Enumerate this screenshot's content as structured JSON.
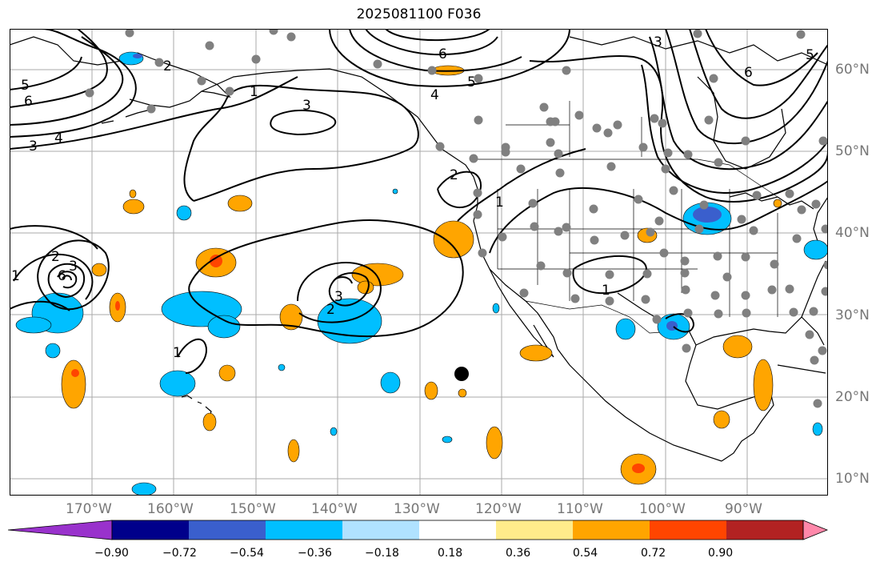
{
  "title": "2025081100 F036",
  "lat_labels": [
    "60°N",
    "50°N",
    "40°N",
    "30°N",
    "20°N",
    "10°N"
  ],
  "lon_labels": [
    "170°W",
    "160°W",
    "150°W",
    "140°W",
    "130°W",
    "120°W",
    "110°W",
    "100°W",
    "90°W"
  ],
  "colorbar": {
    "colors": [
      "#9932CC",
      "#00008B",
      "#3A5FCD",
      "#00BFFF",
      "#B0E2FF",
      "#FFFFFF",
      "#FFEC8B",
      "#FFA500",
      "#FF4500",
      "#B22222",
      "#FF88AA"
    ],
    "labels": [
      "−0.90",
      "−0.72",
      "−0.54",
      "−0.36",
      "−0.18",
      "0.18",
      "0.36",
      "0.54",
      "0.72",
      "0.90"
    ]
  },
  "contour_labels": [
    "5",
    "6",
    "3",
    "4",
    "1",
    "2",
    "3",
    "5",
    "4",
    "6",
    "3",
    "5",
    "6",
    "2",
    "1",
    "3",
    "2",
    "1",
    "1",
    "2",
    "3",
    "6",
    "1"
  ],
  "colors": {
    "land_outline": "#000000",
    "grid": "#aaaaaa",
    "station": "#808080",
    "positive_light": "#FFA500",
    "positive_strong": "#FF4500",
    "negative_light": "#00BFFF",
    "negative_strong": "#3A5FCD"
  }
}
